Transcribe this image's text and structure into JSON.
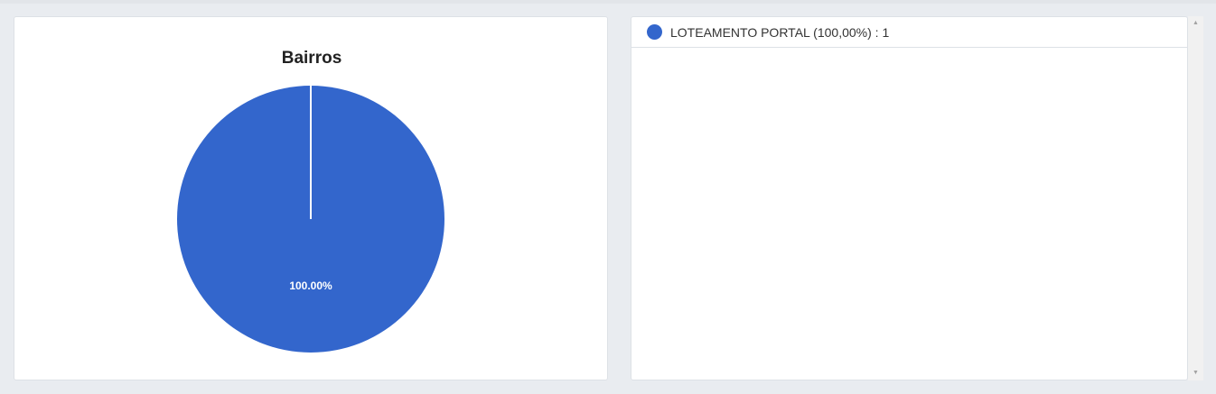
{
  "chart_data": {
    "type": "pie",
    "title": "Bairros",
    "slices": [
      {
        "label": "LOTEAMENTO PORTAL",
        "value": 1,
        "percent_label": "100.00%",
        "color": "#3366cc"
      }
    ]
  },
  "legend": {
    "items": [
      {
        "text": "LOTEAMENTO PORTAL (100,00%) : 1",
        "color": "#3366cc"
      }
    ]
  },
  "scrollbar": {
    "up_icon": "triangle-up",
    "down_icon": "triangle-down"
  }
}
